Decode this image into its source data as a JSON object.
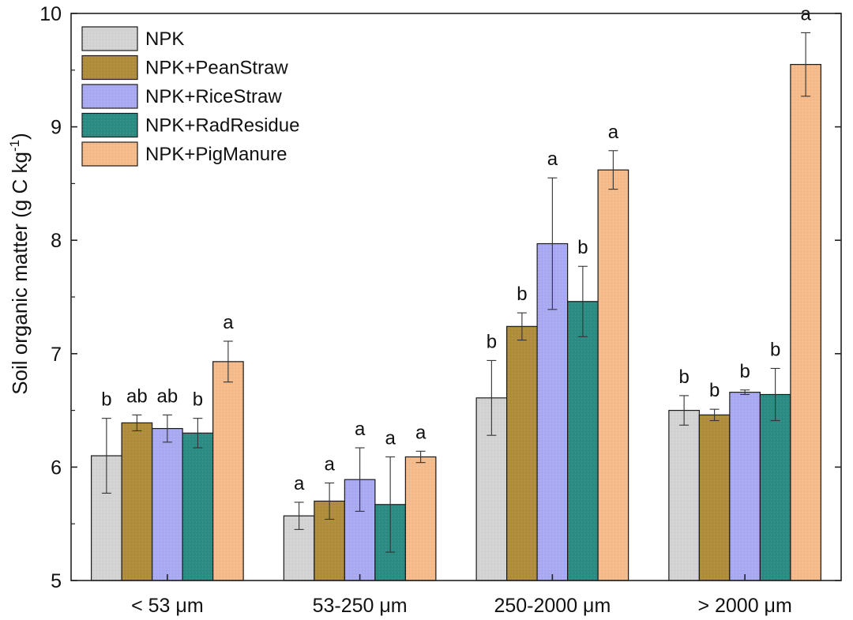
{
  "chart_data": {
    "type": "bar",
    "ylabel": "Soil organic matter (g C kg",
    "ylabel_sup": "-1",
    "ylabel_end": ")",
    "ylim": [
      5,
      10
    ],
    "yticks": [
      "5",
      "6",
      "7",
      "8",
      "9",
      "10"
    ],
    "categories": [
      "< 53 μm",
      "53-250 μm",
      "250-2000 μm",
      "> 2000 μm"
    ],
    "legend_position": "top-left",
    "grid": false,
    "series": [
      {
        "name": "NPK",
        "color": "#d3d3d3",
        "values": [
          6.1,
          5.57,
          6.61,
          6.5
        ],
        "errors": [
          0.33,
          0.12,
          0.33,
          0.13
        ],
        "letters": [
          "b",
          "a",
          "b",
          "b"
        ]
      },
      {
        "name": "NPK+PeanStraw",
        "color": "#b08d3c",
        "values": [
          6.39,
          5.7,
          7.24,
          6.46
        ],
        "errors": [
          0.07,
          0.16,
          0.12,
          0.05
        ],
        "letters": [
          "ab",
          "a",
          "b",
          "b"
        ]
      },
      {
        "name": "NPK+RiceStraw",
        "color": "#a9aaf2",
        "values": [
          6.34,
          5.89,
          7.97,
          6.66
        ],
        "errors": [
          0.12,
          0.28,
          0.58,
          0.02
        ],
        "letters": [
          "ab",
          "a",
          "a",
          "b"
        ]
      },
      {
        "name": "NPK+RadResidue",
        "color": "#2a8c82",
        "values": [
          6.3,
          5.67,
          7.46,
          6.64
        ],
        "errors": [
          0.13,
          0.42,
          0.31,
          0.23
        ],
        "letters": [
          "b",
          "a",
          "b",
          "b"
        ]
      },
      {
        "name": "NPK+PigManure",
        "color": "#f6bb8a",
        "values": [
          6.93,
          6.09,
          8.62,
          9.55
        ],
        "errors": [
          0.18,
          0.05,
          0.17,
          0.28
        ],
        "letters": [
          "a",
          "a",
          "a",
          "a"
        ]
      }
    ]
  }
}
